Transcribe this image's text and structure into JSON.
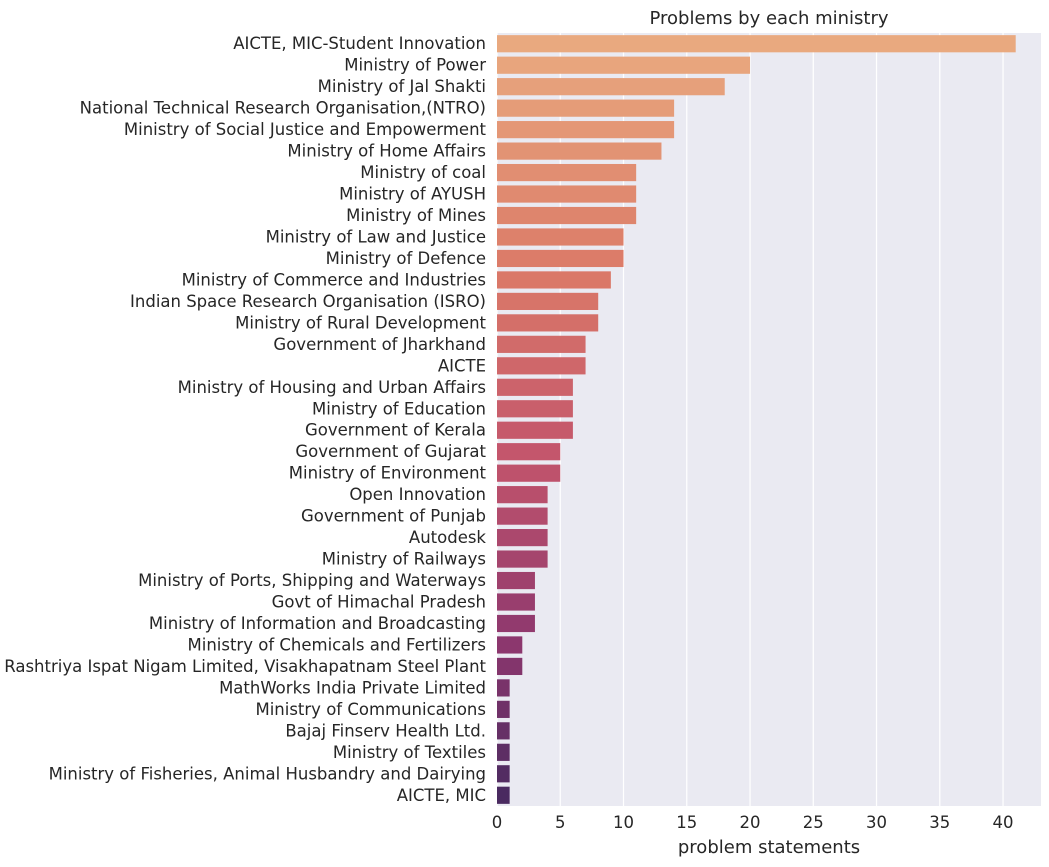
{
  "chart_data": {
    "type": "bar",
    "orientation": "horizontal",
    "title": "Problems by each ministry",
    "xlabel": "problem statements",
    "ylabel": "",
    "xlim": [
      0,
      43
    ],
    "xticks": [
      0,
      5,
      10,
      15,
      20,
      25,
      30,
      35,
      40
    ],
    "grid": true,
    "legend": "none",
    "background_color": "#eaeaf2",
    "grid_color": "#ffffff",
    "palette": "flare",
    "palette_colors": [
      "#e9a97f",
      "#4a2a60"
    ],
    "categories": [
      "AICTE, MIC-Student Innovation",
      "Ministry of Power",
      "Ministry of Jal Shakti",
      "National Technical Research Organisation,(NTRO)",
      "Ministry of Social Justice and Empowerment",
      "Ministry of Home Affairs",
      "Ministry of coal",
      "Ministry of AYUSH",
      "Ministry of Mines",
      "Ministry of Law and Justice",
      "Ministry of Defence",
      "Ministry of Commerce and Industries",
      "Indian Space Research Organisation (ISRO)",
      "Ministry of Rural Development",
      "Government of Jharkhand",
      "AICTE",
      "Ministry of Housing and Urban Affairs",
      "Ministry of Education",
      "Government of Kerala",
      "Government of Gujarat",
      "Ministry of Environment",
      "Open Innovation",
      "Government of Punjab",
      "Autodesk",
      "Ministry of Railways",
      "Ministry of Ports, Shipping and Waterways",
      "Govt of Himachal Pradesh",
      "Ministry of Information and Broadcasting",
      "Ministry of Chemicals and Fertilizers",
      "Rashtriya Ispat Nigam Limited, Visakhapatnam Steel Plant",
      "MathWorks India Private Limited",
      "Ministry of Communications",
      "Bajaj Finserv Health Ltd.",
      "Ministry of Textiles",
      "Ministry of Fisheries, Animal Husbandry and Dairying",
      "AICTE, MIC"
    ],
    "values": [
      41,
      20,
      18,
      14,
      14,
      13,
      11,
      11,
      11,
      10,
      10,
      9,
      8,
      8,
      7,
      7,
      6,
      6,
      6,
      5,
      5,
      4,
      4,
      4,
      4,
      3,
      3,
      3,
      2,
      2,
      1,
      1,
      1,
      1,
      1,
      1
    ]
  }
}
